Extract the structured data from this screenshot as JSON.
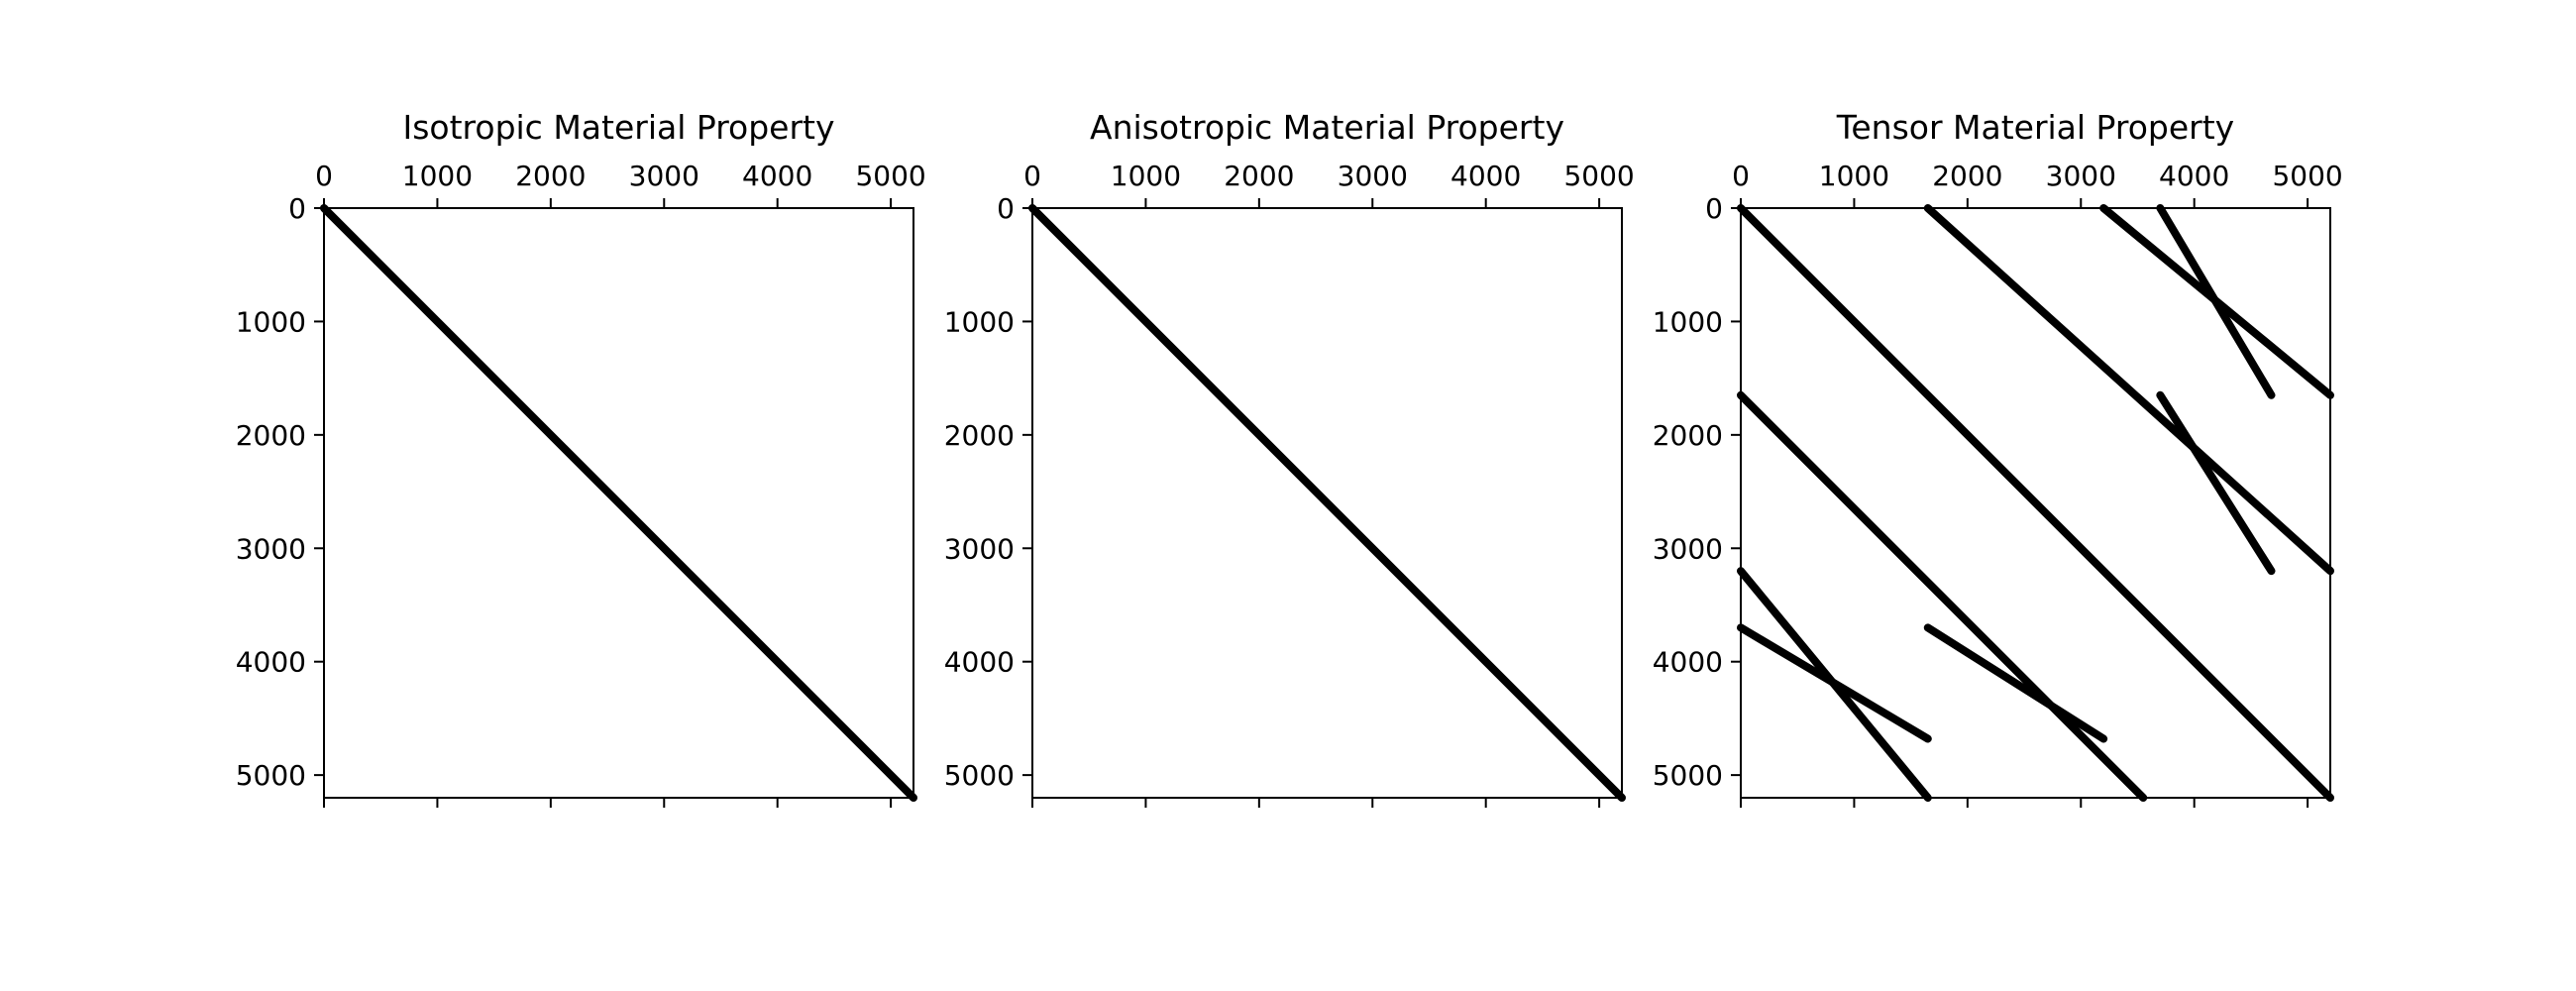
{
  "chart_data": [
    {
      "type": "heatmap",
      "title": "Isotropic Material Property",
      "xlim": [
        0,
        5200
      ],
      "ylim": [
        5200,
        0
      ],
      "xticks": [
        0,
        1000,
        2000,
        3000,
        4000,
        5000
      ],
      "yticks": [
        0,
        1000,
        2000,
        3000,
        4000,
        5000
      ],
      "xtick_position": "top",
      "grid": false,
      "segments": [
        {
          "x": [
            0,
            5200
          ],
          "y": [
            0,
            5200
          ]
        }
      ]
    },
    {
      "type": "heatmap",
      "title": "Anisotropic Material Property",
      "xlim": [
        0,
        5200
      ],
      "ylim": [
        5200,
        0
      ],
      "xticks": [
        0,
        1000,
        2000,
        3000,
        4000,
        5000
      ],
      "yticks": [
        0,
        1000,
        2000,
        3000,
        4000,
        5000
      ],
      "xtick_position": "top",
      "grid": false,
      "segments": [
        {
          "x": [
            0,
            5200
          ],
          "y": [
            0,
            5200
          ]
        }
      ]
    },
    {
      "type": "heatmap",
      "title": "Tensor Material Property",
      "xlim": [
        0,
        5200
      ],
      "ylim": [
        5200,
        0
      ],
      "xticks": [
        0,
        1000,
        2000,
        3000,
        4000,
        5000
      ],
      "yticks": [
        0,
        1000,
        2000,
        3000,
        4000,
        5000
      ],
      "xtick_position": "top",
      "grid": false,
      "segments": [
        {
          "x": [
            0,
            5200
          ],
          "y": [
            0,
            5200
          ]
        },
        {
          "x": [
            1650,
            5200
          ],
          "y": [
            0,
            3200
          ]
        },
        {
          "x": [
            0,
            3550
          ],
          "y": [
            1650,
            5200
          ]
        },
        {
          "x": [
            3200,
            5200
          ],
          "y": [
            0,
            1650
          ]
        },
        {
          "x": [
            0,
            1650
          ],
          "y": [
            3200,
            5200
          ]
        },
        {
          "x": [
            3700,
            4680
          ],
          "y": [
            0,
            1650
          ]
        },
        {
          "x": [
            0,
            1650
          ],
          "y": [
            3700,
            4680
          ]
        },
        {
          "x": [
            3700,
            4680
          ],
          "y": [
            1650,
            3200
          ]
        },
        {
          "x": [
            1650,
            3200
          ],
          "y": [
            3700,
            4680
          ]
        }
      ]
    }
  ]
}
